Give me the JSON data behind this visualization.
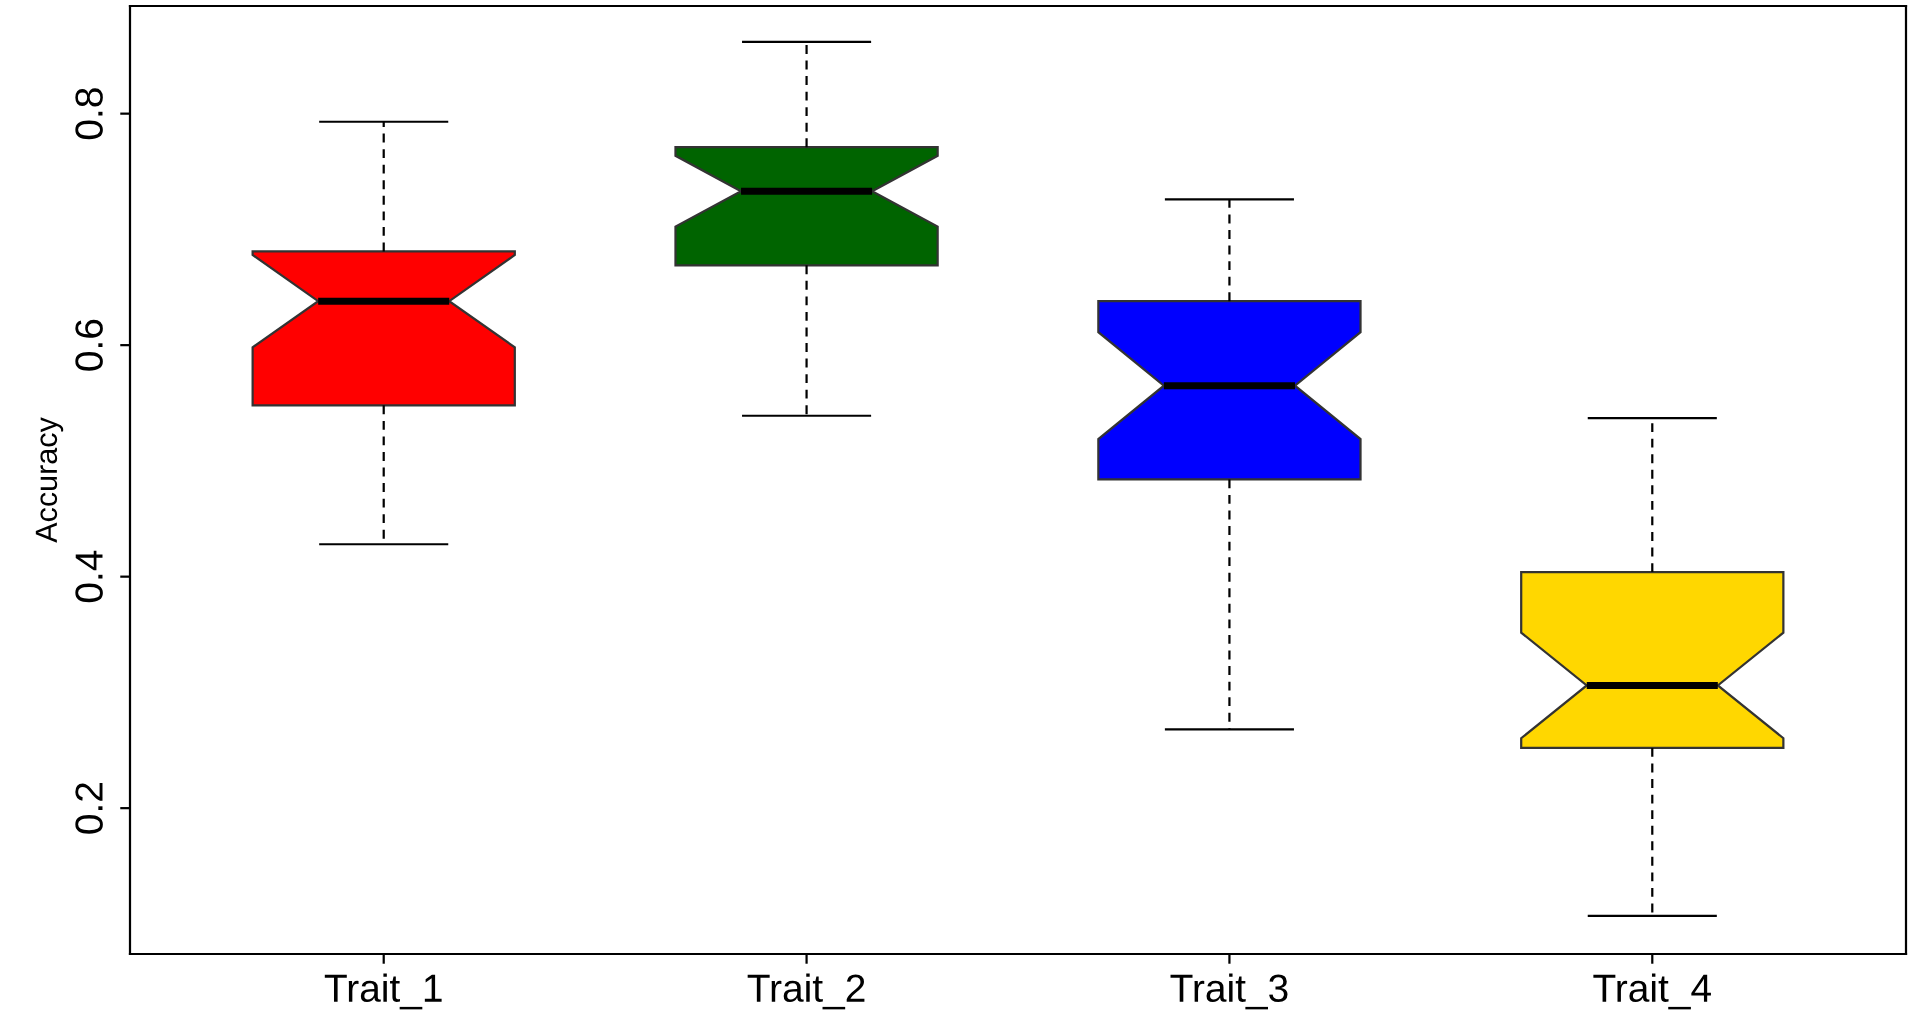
{
  "chart_data": {
    "type": "box",
    "ylabel": "Accuracy",
    "categories": [
      "Trait_1",
      "Trait_2",
      "Trait_3",
      "Trait_4"
    ],
    "colors": [
      "#ff0000",
      "#006400",
      "#0000ff",
      "#ffd700"
    ],
    "boxes": [
      {
        "low": 0.428,
        "q1": 0.548,
        "median": 0.638,
        "q3": 0.681,
        "high": 0.793
      },
      {
        "low": 0.539,
        "q1": 0.669,
        "median": 0.733,
        "q3": 0.771,
        "high": 0.862
      },
      {
        "low": 0.268,
        "q1": 0.484,
        "median": 0.565,
        "q3": 0.638,
        "high": 0.726
      },
      {
        "low": 0.107,
        "q1": 0.252,
        "median": 0.306,
        "q3": 0.404,
        "high": 0.537
      }
    ],
    "ylim": [
      0.074,
      0.893
    ],
    "yticks": [
      0.2,
      0.4,
      0.6,
      0.8
    ],
    "grid": false
  }
}
